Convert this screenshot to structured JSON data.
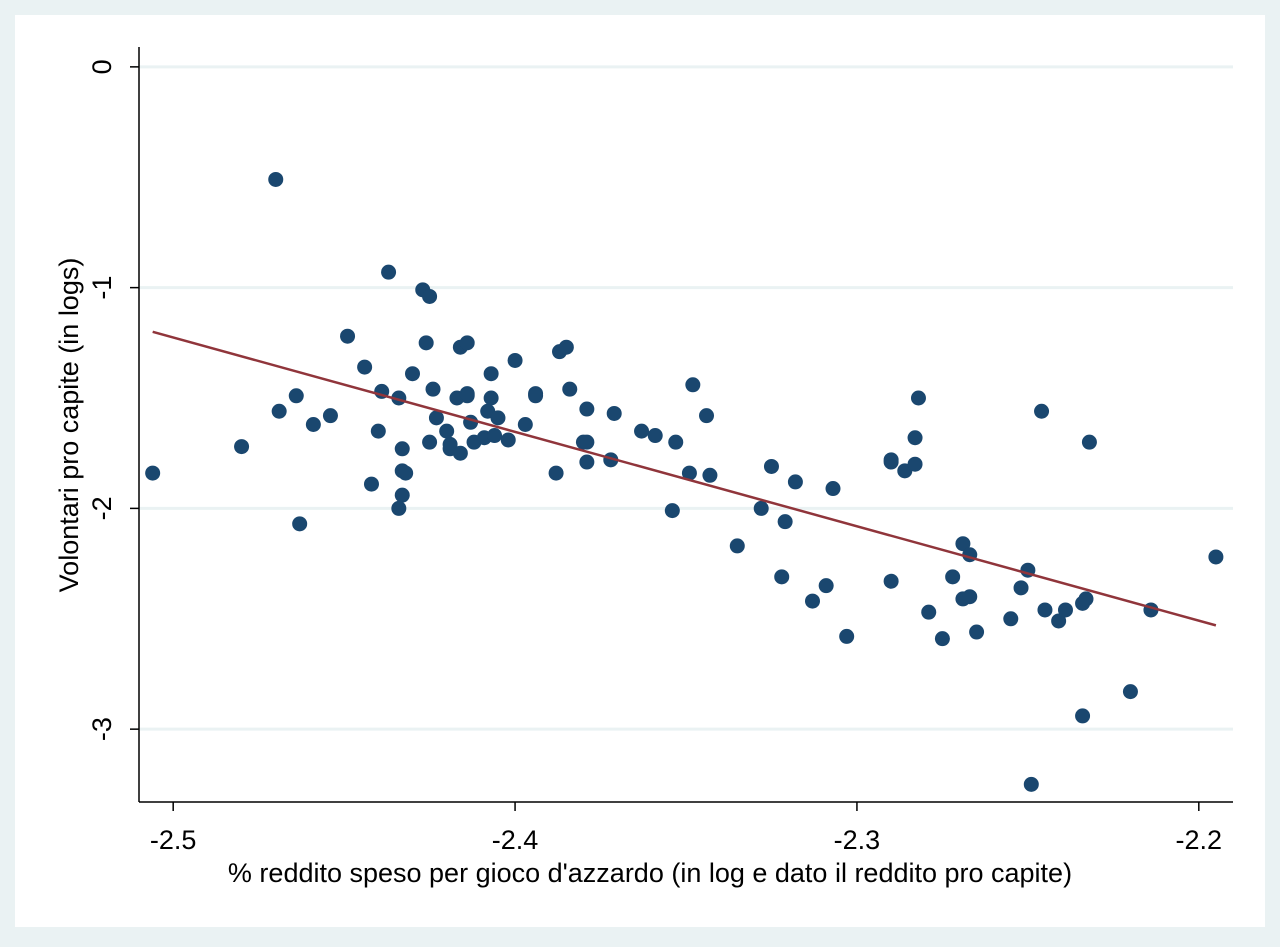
{
  "chart_data": {
    "type": "scatter",
    "title": "",
    "xlabel": "% reddito speso per gioco d'azzardo (in log e dato il reddito pro capite)",
    "ylabel": "Volontari pro capite (in logs)",
    "xlim": [
      -2.51,
      -2.19
    ],
    "ylim": [
      -3.33,
      0.09
    ],
    "x_ticks": [
      -2.5,
      -2.4,
      -2.3,
      -2.2
    ],
    "x_tick_labels": [
      "-2.5",
      "-2.4",
      "-2.3",
      "-2.2"
    ],
    "y_ticks": [
      0,
      -1,
      -2,
      -3
    ],
    "y_tick_labels": [
      "0",
      "-1",
      "-2",
      "-3"
    ],
    "grid": "horizontal",
    "colors": {
      "outer_background": "#eaf2f3",
      "plot_background": "#ffffff",
      "gridline": "#eaf2f3",
      "marker": "#1a476f",
      "fit_line": "#90353b"
    },
    "fit_line": {
      "x": [
        -2.506,
        -2.195
      ],
      "y": [
        -1.2,
        -2.53
      ]
    },
    "points": [
      [
        -2.506,
        -1.84
      ],
      [
        -2.48,
        -1.72
      ],
      [
        -2.47,
        -0.51
      ],
      [
        -2.469,
        -1.56
      ],
      [
        -2.464,
        -1.49
      ],
      [
        -2.463,
        -2.07
      ],
      [
        -2.459,
        -1.62
      ],
      [
        -2.454,
        -1.58
      ],
      [
        -2.449,
        -1.22
      ],
      [
        -2.444,
        -1.36
      ],
      [
        -2.442,
        -1.89
      ],
      [
        -2.44,
        -1.65
      ],
      [
        -2.439,
        -1.47
      ],
      [
        -2.437,
        -0.93
      ],
      [
        -2.434,
        -1.5
      ],
      [
        -2.433,
        -1.73
      ],
      [
        -2.433,
        -1.83
      ],
      [
        -2.433,
        -1.94
      ],
      [
        -2.434,
        -2.0
      ],
      [
        -2.432,
        -1.84
      ],
      [
        -2.43,
        -1.39
      ],
      [
        -2.427,
        -1.01
      ],
      [
        -2.426,
        -1.25
      ],
      [
        -2.425,
        -1.04
      ],
      [
        -2.425,
        -1.7
      ],
      [
        -2.424,
        -1.46
      ],
      [
        -2.423,
        -1.59
      ],
      [
        -2.42,
        -1.65
      ],
      [
        -2.419,
        -1.71
      ],
      [
        -2.419,
        -1.73
      ],
      [
        -2.417,
        -1.5
      ],
      [
        -2.416,
        -1.75
      ],
      [
        -2.416,
        -1.27
      ],
      [
        -2.414,
        -1.49
      ],
      [
        -2.414,
        -1.25
      ],
      [
        -2.414,
        -1.48
      ],
      [
        -2.413,
        -1.61
      ],
      [
        -2.412,
        -1.7
      ],
      [
        -2.409,
        -1.68
      ],
      [
        -2.408,
        -1.56
      ],
      [
        -2.407,
        -1.39
      ],
      [
        -2.407,
        -1.5
      ],
      [
        -2.406,
        -1.67
      ],
      [
        -2.405,
        -1.59
      ],
      [
        -2.402,
        -1.69
      ],
      [
        -2.4,
        -1.33
      ],
      [
        -2.397,
        -1.62
      ],
      [
        -2.394,
        -1.48
      ],
      [
        -2.394,
        -1.49
      ],
      [
        -2.388,
        -1.84
      ],
      [
        -2.387,
        -1.29
      ],
      [
        -2.385,
        -1.27
      ],
      [
        -2.384,
        -1.46
      ],
      [
        -2.38,
        -1.7
      ],
      [
        -2.379,
        -1.55
      ],
      [
        -2.379,
        -1.79
      ],
      [
        -2.379,
        -1.7
      ],
      [
        -2.372,
        -1.78
      ],
      [
        -2.371,
        -1.57
      ],
      [
        -2.363,
        -1.65
      ],
      [
        -2.359,
        -1.67
      ],
      [
        -2.354,
        -2.01
      ],
      [
        -2.353,
        -1.7
      ],
      [
        -2.349,
        -1.84
      ],
      [
        -2.348,
        -1.44
      ],
      [
        -2.344,
        -1.58
      ],
      [
        -2.343,
        -1.85
      ],
      [
        -2.335,
        -2.17
      ],
      [
        -2.328,
        -2.0
      ],
      [
        -2.325,
        -1.81
      ],
      [
        -2.322,
        -2.31
      ],
      [
        -2.321,
        -2.06
      ],
      [
        -2.318,
        -1.88
      ],
      [
        -2.313,
        -2.42
      ],
      [
        -2.309,
        -2.35
      ],
      [
        -2.307,
        -1.91
      ],
      [
        -2.303,
        -2.58
      ],
      [
        -2.29,
        -1.79
      ],
      [
        -2.29,
        -2.33
      ],
      [
        -2.29,
        -1.78
      ],
      [
        -2.286,
        -1.83
      ],
      [
        -2.283,
        -1.68
      ],
      [
        -2.283,
        -1.8
      ],
      [
        -2.282,
        -1.5
      ],
      [
        -2.279,
        -2.47
      ],
      [
        -2.275,
        -2.59
      ],
      [
        -2.272,
        -2.31
      ],
      [
        -2.269,
        -2.16
      ],
      [
        -2.269,
        -2.41
      ],
      [
        -2.267,
        -2.21
      ],
      [
        -2.267,
        -2.4
      ],
      [
        -2.265,
        -2.56
      ],
      [
        -2.255,
        -2.5
      ],
      [
        -2.252,
        -2.36
      ],
      [
        -2.25,
        -2.28
      ],
      [
        -2.249,
        -3.25
      ],
      [
        -2.246,
        -1.56
      ],
      [
        -2.245,
        -2.46
      ],
      [
        -2.241,
        -2.51
      ],
      [
        -2.239,
        -2.46
      ],
      [
        -2.234,
        -2.43
      ],
      [
        -2.234,
        -2.94
      ],
      [
        -2.233,
        -2.41
      ],
      [
        -2.232,
        -1.7
      ],
      [
        -2.22,
        -2.83
      ],
      [
        -2.214,
        -2.46
      ],
      [
        -2.195,
        -2.22
      ]
    ]
  }
}
